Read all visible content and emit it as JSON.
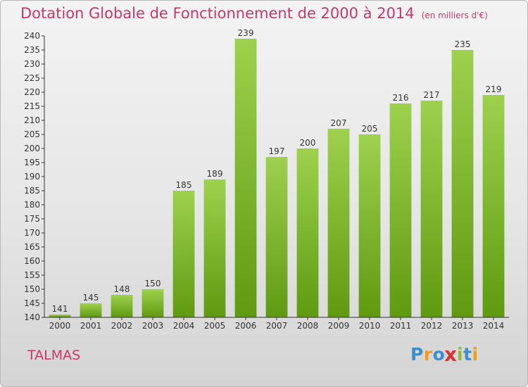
{
  "header": {
    "title": "Dotation Globale de Fonctionnement de 2000 à 2014",
    "unit": "(en milliers d'€)"
  },
  "footer": {
    "place": "TALMAS",
    "logo_letters": [
      "P",
      "r",
      "o",
      "x",
      "i",
      "t",
      "i"
    ],
    "logo_colors": [
      "#3a8fd0",
      "#f39a1d",
      "#3a8fd0",
      "#d9312e",
      "#8cbf2a",
      "#3a8fd0",
      "#f39a1d"
    ]
  },
  "colors": {
    "title": "#c8376a",
    "bar_light": "#9ed14e",
    "bar_dark": "#5f9a10",
    "axis": "#333333"
  },
  "chart_data": {
    "type": "bar",
    "title": "Dotation Globale de Fonctionnement de 2000 à 2014",
    "subtitle": "(en milliers d'€)",
    "xlabel": "",
    "ylabel": "",
    "categories": [
      "2000",
      "2001",
      "2002",
      "2003",
      "2004",
      "2005",
      "2006",
      "2007",
      "2008",
      "2009",
      "2010",
      "2011",
      "2012",
      "2013",
      "2014"
    ],
    "values": [
      141,
      145,
      148,
      150,
      185,
      189,
      239,
      197,
      200,
      207,
      205,
      216,
      217,
      235,
      219
    ],
    "ylim": [
      140,
      240
    ],
    "ytick_step": 5,
    "grid": false,
    "legend": "none"
  }
}
